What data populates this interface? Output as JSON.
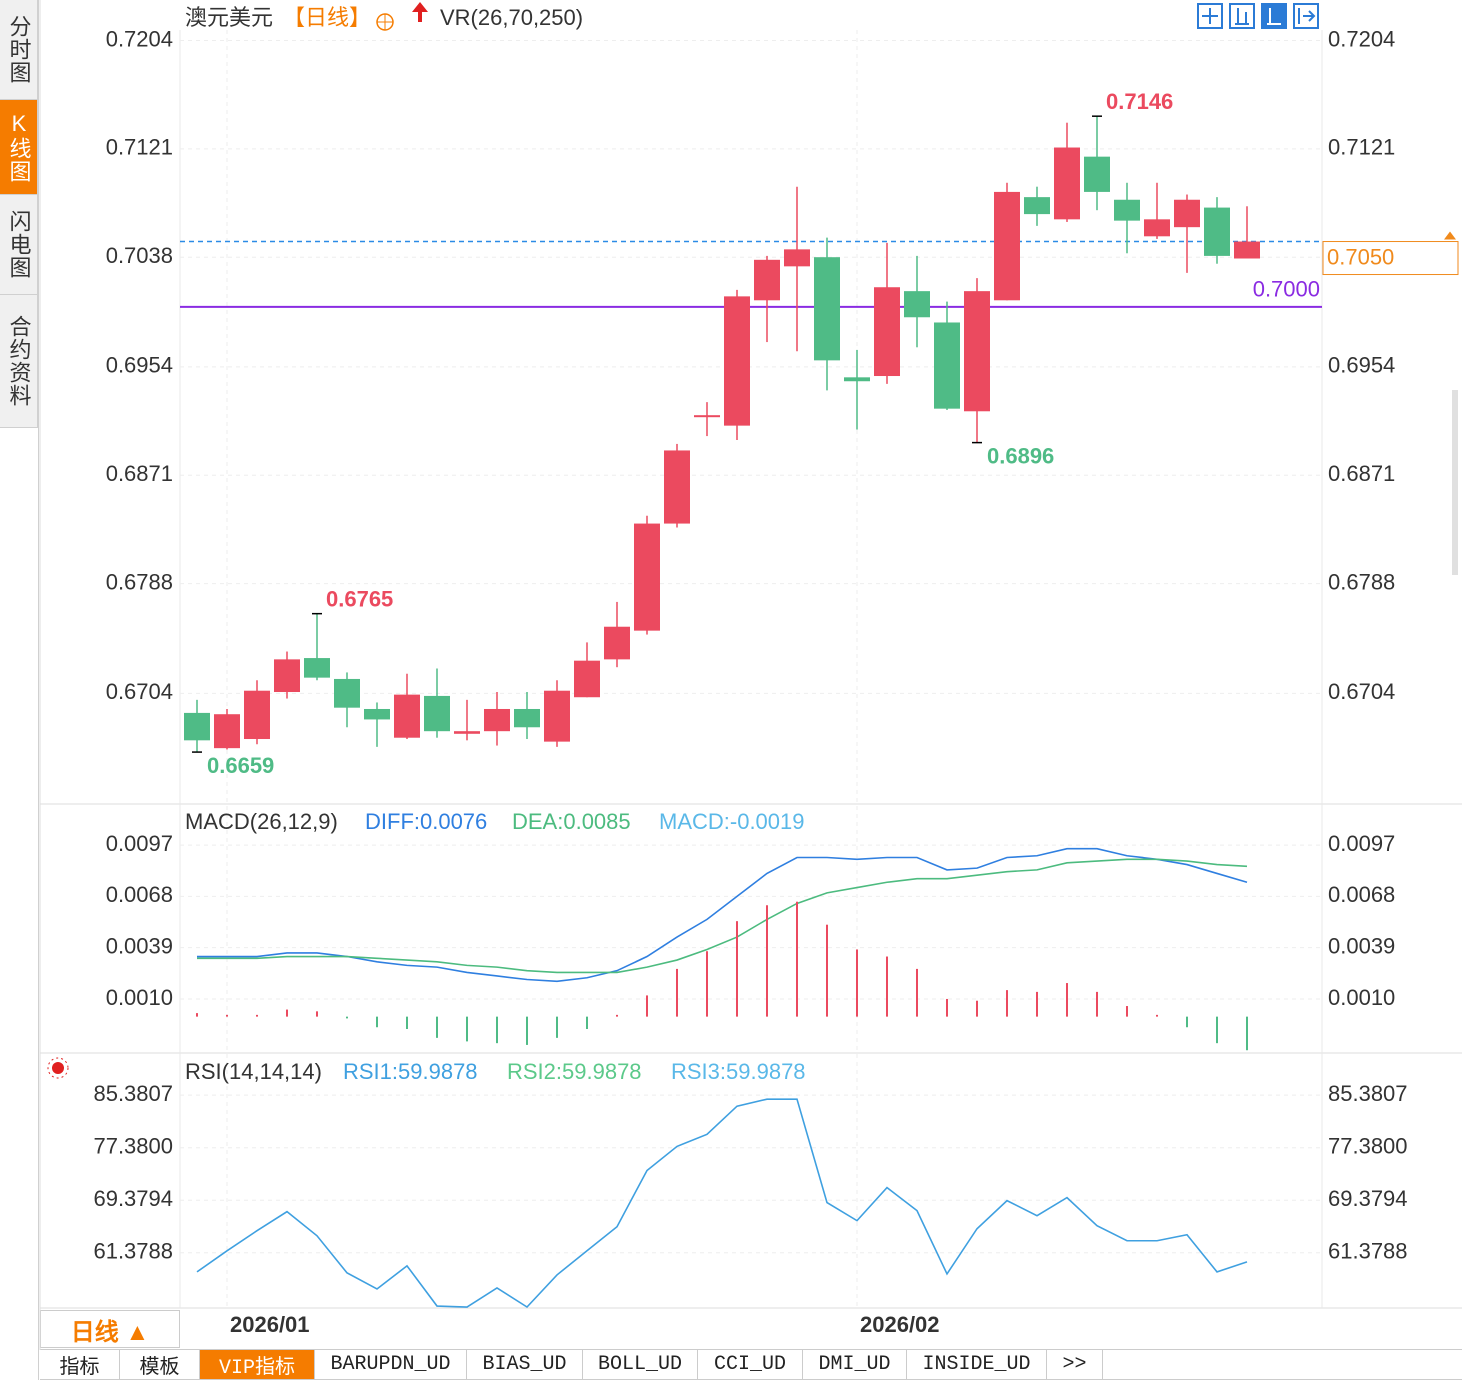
{
  "ui": {
    "side_tabs": [
      {
        "label": "分时图"
      },
      {
        "label": "K线图",
        "active": true
      },
      {
        "label": "闪电图"
      },
      {
        "label": "合约资料"
      }
    ],
    "period_button": "日线 ▲",
    "bottom_tabs": [
      {
        "label": "指标"
      },
      {
        "label": "模板"
      },
      {
        "label": "VIP指标",
        "active": true
      },
      {
        "label": "BARUPDN_UD"
      },
      {
        "label": "BIAS_UD"
      },
      {
        "label": "BOLL_UD"
      },
      {
        "label": "CCI_UD"
      },
      {
        "label": "DMI_UD"
      },
      {
        "label": "INSIDE_UD"
      },
      {
        "label": ">>"
      }
    ]
  },
  "chart_data": [
    {
      "type": "candlestick",
      "title": "澳元美元",
      "period": "【日线】",
      "indicator": "VR(26,70,250)",
      "categories": [
        null,
        "2026/01",
        null,
        null,
        null,
        null,
        null,
        null,
        null,
        null,
        null,
        null,
        null,
        null,
        null,
        null,
        null,
        null,
        null,
        null,
        null,
        null,
        "2026/02",
        null,
        null,
        null,
        null,
        null,
        null,
        null,
        null,
        null,
        null,
        null,
        null,
        null
      ],
      "open": [
        0.6689,
        0.6662,
        0.6669,
        0.6705,
        0.6731,
        0.6715,
        0.6692,
        0.667,
        0.6702,
        0.6673,
        0.6675,
        0.6692,
        0.6667,
        0.6701,
        0.673,
        0.6752,
        0.6834,
        0.6916,
        0.6909,
        0.7005,
        0.7031,
        0.7038,
        0.6946,
        0.6947,
        0.7012,
        0.6988,
        0.692,
        0.7005,
        0.7084,
        0.7067,
        0.7115,
        0.7082,
        0.7054,
        0.7061,
        0.7076,
        0.7037
      ],
      "high": [
        0.6699,
        0.6692,
        0.6714,
        0.6736,
        0.6765,
        0.672,
        0.6697,
        0.6719,
        0.6723,
        0.6699,
        0.6705,
        0.6705,
        0.6714,
        0.6743,
        0.6774,
        0.684,
        0.6895,
        0.6927,
        0.7013,
        0.7039,
        0.7092,
        0.7053,
        0.6967,
        0.7049,
        0.7039,
        0.7004,
        0.7022,
        0.7095,
        0.7092,
        0.7141,
        0.7146,
        0.7095,
        0.7095,
        0.7086,
        0.7084,
        0.7077
      ],
      "low": [
        0.6659,
        0.6661,
        0.6665,
        0.67,
        0.6714,
        0.6678,
        0.6663,
        0.6669,
        0.667,
        0.6668,
        0.6664,
        0.6669,
        0.6663,
        0.6701,
        0.6724,
        0.6749,
        0.6831,
        0.6901,
        0.6898,
        0.6973,
        0.6966,
        0.6936,
        0.6906,
        0.6941,
        0.6969,
        0.6921,
        0.6896,
        0.7005,
        0.7062,
        0.7065,
        0.7074,
        0.7041,
        0.7052,
        0.7026,
        0.7033,
        0.7037
      ],
      "close": [
        0.6668,
        0.6688,
        0.6706,
        0.673,
        0.6716,
        0.6693,
        0.6684,
        0.6703,
        0.6675,
        0.6675,
        0.6692,
        0.6678,
        0.6706,
        0.6729,
        0.6755,
        0.6834,
        0.689,
        0.6917,
        0.7008,
        0.7036,
        0.7044,
        0.6959,
        0.6943,
        0.7015,
        0.6992,
        0.6922,
        0.7012,
        0.7088,
        0.7071,
        0.7122,
        0.7088,
        0.7066,
        0.7067,
        0.7082,
        0.7039,
        0.705
      ],
      "up_color": "#eb4a5f",
      "down_color": "#4fbb86",
      "ylim": [
        0.662,
        0.7212
      ],
      "yticks": [
        0.7204,
        0.7121,
        0.7038,
        0.6954,
        0.6871,
        0.6788,
        0.6704
      ],
      "reference_line": {
        "value": 0.7,
        "label": "0.7000",
        "color": "#8a2be2"
      },
      "last_price": {
        "value": 0.705,
        "label": "0.7050",
        "color": "#f08a1c",
        "line_color": "#2b8be6"
      }
    },
    {
      "type": "macd",
      "title": "MACD(26,12,9)",
      "up_color": "#eb4a5f",
      "down_color": "#4fbb86",
      "ylim": [
        -0.002,
        0.0118
      ],
      "yticks": [
        0.0097,
        0.0068,
        0.0039,
        {
          "value": 0.001,
          "label": "0.0010"
        }
      ],
      "series": [
        {
          "name": "DIFF:0.0076",
          "color": "#2f7fe0",
          "values": [
            0.0034,
            0.0034,
            0.0034,
            0.0036,
            0.0036,
            0.0034,
            0.0031,
            0.0029,
            0.0028,
            0.0025,
            0.0023,
            0.0021,
            0.002,
            0.0022,
            0.0026,
            0.0034,
            0.0045,
            0.0055,
            0.0068,
            0.0081,
            0.009,
            0.009,
            0.0089,
            0.009,
            0.009,
            0.0083,
            0.0084,
            0.009,
            0.0091,
            0.0095,
            0.0095,
            0.0091,
            0.0089,
            0.0086,
            0.0081,
            0.0076
          ]
        },
        {
          "name": "DEA:0.0085",
          "color": "#4cbb7f",
          "values": [
            0.0033,
            0.0033,
            0.0033,
            0.0034,
            0.0034,
            0.0034,
            0.0033,
            0.0032,
            0.0031,
            0.0029,
            0.0028,
            0.0026,
            0.0025,
            0.0025,
            0.0025,
            0.0028,
            0.0032,
            0.0038,
            0.0045,
            0.0055,
            0.0064,
            0.007,
            0.0073,
            0.0076,
            0.0078,
            0.0078,
            0.008,
            0.0082,
            0.0083,
            0.0087,
            0.0088,
            0.0089,
            0.0089,
            0.0088,
            0.0086,
            0.0085
          ]
        },
        {
          "name": "MACD:-0.0019",
          "color": "#5ab8e8",
          "kind": "bar",
          "values": [
            0.0002,
            0.0001,
            0.0001,
            0.0004,
            0.0003,
            -0.0001,
            -0.0006,
            -0.0007,
            -0.0012,
            -0.0014,
            -0.0015,
            -0.0016,
            -0.0012,
            -0.0007,
            0.0001,
            0.0012,
            0.0027,
            0.0037,
            0.0054,
            0.0063,
            0.0065,
            0.0052,
            0.0038,
            0.0034,
            0.0027,
            0.001,
            0.0009,
            0.0015,
            0.0014,
            0.0019,
            0.0014,
            0.0006,
            0.0001,
            -0.0006,
            -0.0015,
            -0.0019
          ]
        }
      ]
    },
    {
      "type": "line",
      "title": "RSI(14,14,14)",
      "ylim": [
        52.97,
        91.04
      ],
      "yticks": [
        85.3807,
        {
          "value": 77.38,
          "label": "77.3800"
        },
        69.3794,
        61.3788
      ],
      "series": [
        {
          "name": "RSI1:59.9878",
          "color": "#3fa0e0",
          "values": [
            58.47,
            61.68,
            64.74,
            67.64,
            63.97,
            58.32,
            55.87,
            59.39,
            53.27,
            53.12,
            56.02,
            53.12,
            58.01,
            61.68,
            65.35,
            73.91,
            77.58,
            79.42,
            83.7,
            84.77,
            84.77,
            69.02,
            66.27,
            71.31,
            67.8,
            58.16,
            65.04,
            69.32,
            67.03,
            69.78,
            65.5,
            63.21,
            63.21,
            64.13,
            58.47,
            59.9878
          ]
        }
      ],
      "legend_extra": [
        {
          "name": "RSI2:59.9878",
          "color": "#5cc98a"
        },
        {
          "name": "RSI3:59.9878",
          "color": "#5ab8e8"
        }
      ]
    }
  ]
}
